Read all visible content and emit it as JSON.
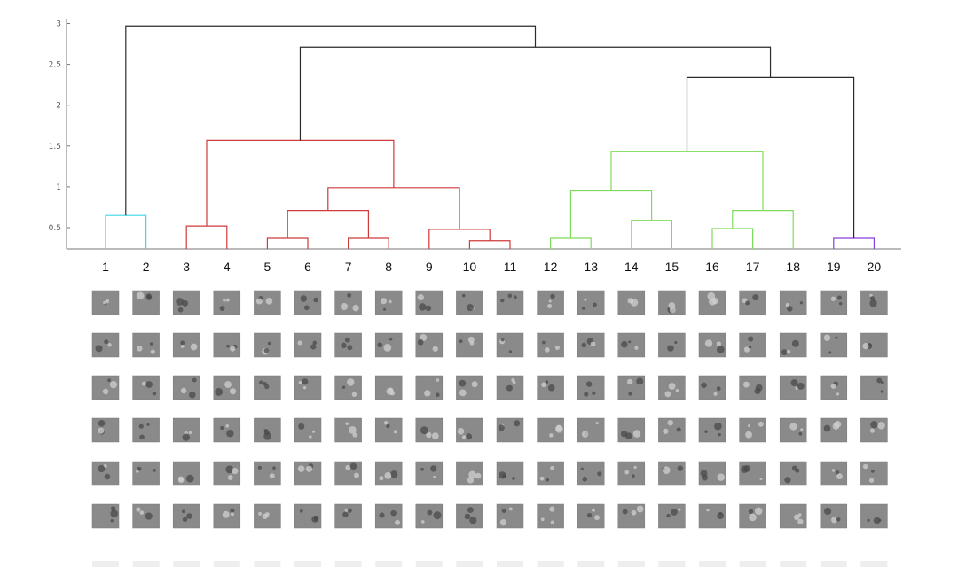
{
  "chart_data": {
    "type": "dendrogram",
    "title": "",
    "xlabel": "",
    "ylabel": "",
    "ylim": [
      0.2,
      3.05
    ],
    "yticks": [
      0.5,
      1,
      1.5,
      2,
      2.5,
      3
    ],
    "ytick_labels": [
      "0.5",
      "1",
      "1.5",
      "2",
      "2.5",
      "3"
    ],
    "leaves": [
      "1",
      "2",
      "3",
      "4",
      "5",
      "6",
      "7",
      "8",
      "9",
      "10",
      "11",
      "12",
      "13",
      "14",
      "15",
      "16",
      "17",
      "18",
      "19",
      "20"
    ],
    "merges": [
      {
        "left": 5,
        "right": 6,
        "height": 0.37,
        "color": "red"
      },
      {
        "left": 7,
        "right": 8,
        "height": 0.37,
        "color": "red"
      },
      {
        "left": 10,
        "right": 11,
        "height": 0.34,
        "color": "red"
      },
      {
        "left": 9,
        "right": "10+11",
        "height": 0.48,
        "color": "red"
      },
      {
        "left": "5+6",
        "right": "7+8",
        "height": 0.71,
        "color": "red"
      },
      {
        "left": "5..8",
        "right": "9..11",
        "height": 0.99,
        "color": "red"
      },
      {
        "left": 3,
        "right": 4,
        "height": 0.52,
        "color": "red"
      },
      {
        "left": "3+4",
        "right": "5..11",
        "height": 1.57,
        "color": "red"
      },
      {
        "left": 1,
        "right": 2,
        "height": 0.65,
        "color": "cyan"
      },
      {
        "left": 12,
        "right": 13,
        "height": 0.37,
        "color": "green"
      },
      {
        "left": 14,
        "right": 15,
        "height": 0.59,
        "color": "green"
      },
      {
        "left": "12+13",
        "right": "14+15",
        "height": 0.95,
        "color": "green"
      },
      {
        "left": 16,
        "right": 17,
        "height": 0.49,
        "color": "green"
      },
      {
        "left": "16+17",
        "right": 18,
        "height": 0.71,
        "color": "green"
      },
      {
        "left": "12..15",
        "right": "16..18",
        "height": 1.43,
        "color": "green"
      },
      {
        "left": 19,
        "right": 20,
        "height": 0.37,
        "color": "purple"
      },
      {
        "left": "12..18",
        "right": "19+20",
        "height": 2.34,
        "color": "black"
      },
      {
        "left": "3..11",
        "right": "12..20",
        "height": 2.71,
        "color": "black"
      },
      {
        "left": "1+2",
        "right": "3..20",
        "height": 2.97,
        "color": "black"
      }
    ],
    "grid": false,
    "legend": "none",
    "colors": {
      "cyan": "#3fd6e6",
      "red": "#cf3b3b",
      "green": "#7fdc5a",
      "purple": "#8a3fe0",
      "black": "#2b2b2b"
    },
    "thumbnail_grid": {
      "rows": 6,
      "columns": 20,
      "tile_color": "#8a8a8a"
    }
  }
}
